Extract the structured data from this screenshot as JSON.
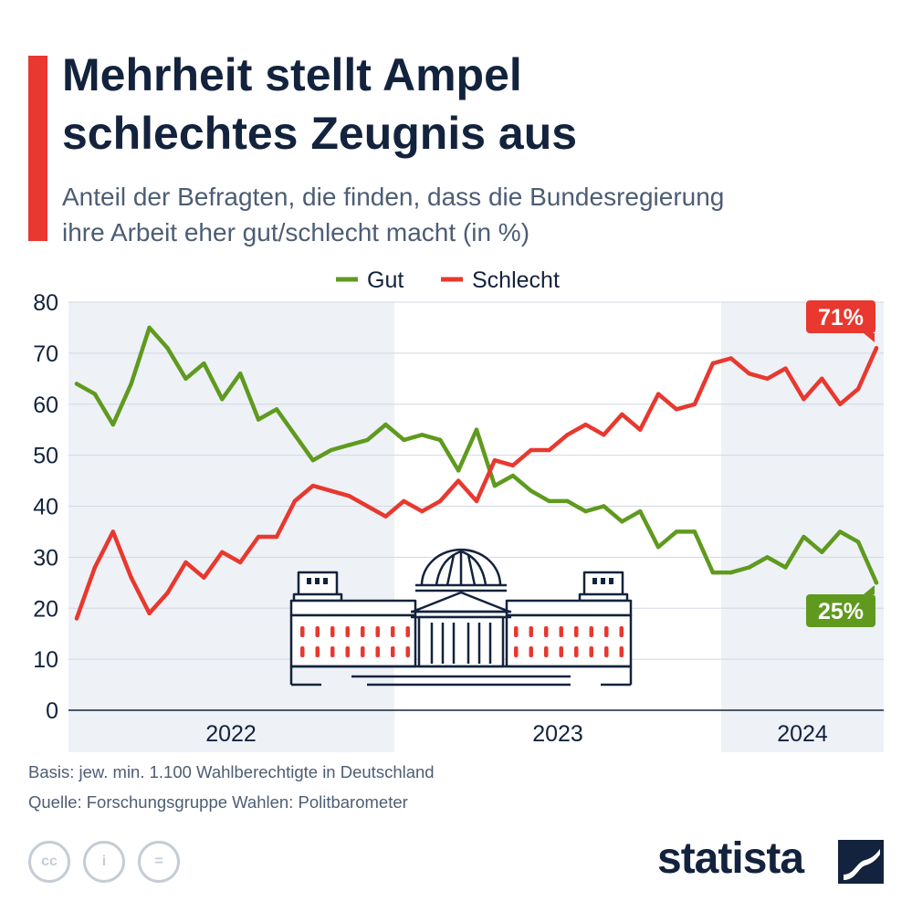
{
  "header": {
    "title_lines": [
      "Mehrheit stellt Ampel",
      "schlechtes Zeugnis aus"
    ],
    "subtitle_lines": [
      "Anteil der Befragten, die finden, dass die Bundesregierung",
      "ihre Arbeit eher gut/schlecht macht (in %)"
    ]
  },
  "chart_data": {
    "type": "line",
    "title": "Mehrheit stellt Ampel schlechtes Zeugnis aus",
    "subtitle": "Anteil der Befragten, die finden, dass die Bundesregierung ihre Arbeit eher gut/schlecht macht (in %)",
    "x_labels": [
      "2022",
      "2023",
      "2024"
    ],
    "ylim": [
      0,
      80
    ],
    "yticks": [
      0,
      10,
      20,
      30,
      40,
      50,
      60,
      70,
      80
    ],
    "grid": true,
    "legend_position": "top-center",
    "series": [
      {
        "name": "Gut",
        "color": "#5f9a1f",
        "values": [
          64,
          62,
          56,
          64,
          75,
          71,
          65,
          68,
          61,
          66,
          57,
          59,
          54,
          49,
          51,
          52,
          53,
          56,
          53,
          54,
          53,
          47,
          55,
          44,
          46,
          43,
          41,
          41,
          39,
          40,
          37,
          39,
          32,
          35,
          35,
          27,
          27,
          28,
          30,
          28,
          34,
          31,
          35,
          33,
          25
        ],
        "end_label": "25%"
      },
      {
        "name": "Schlecht",
        "color": "#e8382f",
        "values": [
          18,
          28,
          35,
          26,
          19,
          23,
          29,
          26,
          31,
          29,
          34,
          34,
          41,
          44,
          43,
          42,
          40,
          38,
          41,
          39,
          41,
          45,
          41,
          49,
          48,
          51,
          51,
          54,
          56,
          54,
          58,
          55,
          62,
          59,
          60,
          68,
          69,
          66,
          65,
          67,
          61,
          65,
          60,
          63,
          71
        ],
        "end_label": "71%"
      }
    ]
  },
  "footer": {
    "basis": "Basis: jew. min. 1.100 Wahlberechtigte in Deutschland",
    "source": "Quelle: Forschungsgruppe Wahlen: Politbarometer",
    "license_icons": [
      "cc-icon",
      "attribution-icon",
      "no-derivatives-icon"
    ],
    "license_glyphs": [
      "cc",
      "i",
      "="
    ],
    "brand": "statista"
  }
}
